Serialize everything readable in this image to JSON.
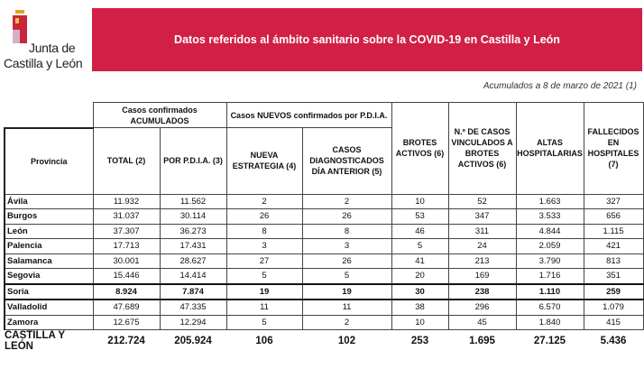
{
  "logo": {
    "line1": "Junta de",
    "line2": "Castilla y León"
  },
  "banner": {
    "title": "Datos referidos al ámbito sanitario sobre la COVID-19 en Castilla y León"
  },
  "subtitle": "Acumulados a 8 de marzo de 2021 (1)",
  "colors": {
    "banner": "#d11f45"
  },
  "table": {
    "groups": [
      "Casos confirmados ACUMULADOS",
      "Casos NUEVOS confirmados por P.D.I.A."
    ],
    "headers": [
      "Provincia",
      "TOTAL (2)",
      "POR P.D.I.A. (3)",
      "NUEVA ESTRATEGIA (4)",
      "CASOS DIAGNOSTICADOS DÍA ANTERIOR (5)",
      "BROTES ACTIVOS (6)",
      "N.º DE CASOS VINCULADOS A BROTES ACTIVOS (6)",
      "ALTAS HOSPITALARIAS",
      "FALLECIDOS EN HOSPITALES (7)"
    ],
    "rows": [
      [
        "Ávila",
        "11.932",
        "11.562",
        "2",
        "2",
        "10",
        "52",
        "1.663",
        "327"
      ],
      [
        "Burgos",
        "31.037",
        "30.114",
        "26",
        "26",
        "53",
        "347",
        "3.533",
        "656"
      ],
      [
        "León",
        "37.307",
        "36.273",
        "8",
        "8",
        "46",
        "311",
        "4.844",
        "1.115"
      ],
      [
        "Palencia",
        "17.713",
        "17.431",
        "3",
        "3",
        "5",
        "24",
        "2.059",
        "421"
      ],
      [
        "Salamanca",
        "30.001",
        "28.627",
        "27",
        "26",
        "41",
        "213",
        "3.790",
        "813"
      ],
      [
        "Segovia",
        "15.446",
        "14.414",
        "5",
        "5",
        "20",
        "169",
        "1.716",
        "351"
      ],
      [
        "Soria",
        "8.924",
        "7.874",
        "19",
        "19",
        "30",
        "238",
        "1.110",
        "259"
      ],
      [
        "Valladolid",
        "47.689",
        "47.335",
        "11",
        "11",
        "38",
        "296",
        "6.570",
        "1.079"
      ],
      [
        "Zamora",
        "12.675",
        "12.294",
        "5",
        "2",
        "10",
        "45",
        "1.840",
        "415"
      ]
    ],
    "highlighted_row": "Soria",
    "total": [
      "CASTILLA Y LEÓN",
      "212.724",
      "205.924",
      "106",
      "102",
      "253",
      "1.695",
      "27.125",
      "5.436"
    ]
  }
}
